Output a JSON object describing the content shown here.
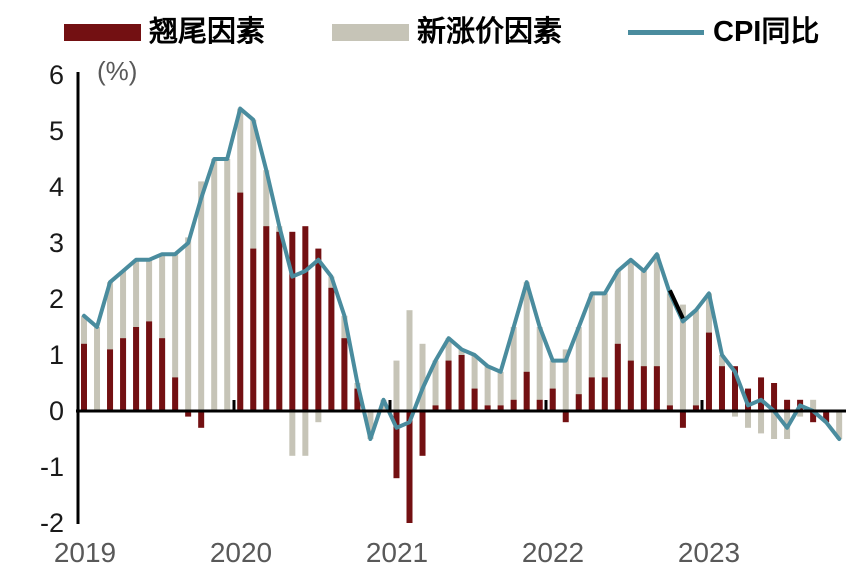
{
  "colors": {
    "carryover": "#731012",
    "new_price": "#C6C4B7",
    "cpi_line": "#4A8C9E",
    "black_segment": "#000000",
    "axis": "#000000",
    "y_label": "#1A1A1A",
    "x_label": "#595959",
    "unit_label": "#595959"
  },
  "legend": [
    {
      "label": "翘尾因素",
      "type": "bar",
      "color": "#731012"
    },
    {
      "label": "新涨价因素",
      "type": "bar",
      "color": "#C6C4B7"
    },
    {
      "label": "CPI同比",
      "type": "line",
      "color": "#4A8C9E"
    }
  ],
  "y_axis": {
    "unit": "(%)",
    "ticks": [
      6,
      5,
      4,
      3,
      2,
      1,
      0,
      -1,
      -2
    ],
    "min": -2,
    "max": 6
  },
  "x_axis": {
    "years": [
      "2019",
      "2020",
      "2021",
      "2022",
      "2023"
    ]
  },
  "chart_data": {
    "type": "bar+line",
    "title": "",
    "ylabel": "(%)",
    "ylim": [
      -2,
      6
    ],
    "grid": false,
    "legend_position": "top",
    "x": [
      "2019-01",
      "2019-02",
      "2019-03",
      "2019-04",
      "2019-05",
      "2019-06",
      "2019-07",
      "2019-08",
      "2019-09",
      "2019-10",
      "2019-11",
      "2019-12",
      "2020-01",
      "2020-02",
      "2020-03",
      "2020-04",
      "2020-05",
      "2020-06",
      "2020-07",
      "2020-08",
      "2020-09",
      "2020-10",
      "2020-11",
      "2020-12",
      "2021-01",
      "2021-02",
      "2021-03",
      "2021-04",
      "2021-05",
      "2021-06",
      "2021-07",
      "2021-08",
      "2021-09",
      "2021-10",
      "2021-11",
      "2021-12",
      "2022-01",
      "2022-02",
      "2022-03",
      "2022-04",
      "2022-05",
      "2022-06",
      "2022-07",
      "2022-08",
      "2022-09",
      "2022-10",
      "2022-11",
      "2022-12",
      "2023-01",
      "2023-02",
      "2023-03",
      "2023-04",
      "2023-05",
      "2023-06",
      "2023-07",
      "2023-08",
      "2023-09",
      "2023-10",
      "2023-11"
    ],
    "series": [
      {
        "name": "翘尾因素",
        "type": "bar",
        "stacked": true,
        "color": "#731012",
        "values": [
          1.2,
          0.0,
          1.1,
          1.3,
          1.5,
          1.6,
          1.3,
          0.6,
          -0.1,
          -0.3,
          0.0,
          0.0,
          3.9,
          2.9,
          3.3,
          3.2,
          3.2,
          3.3,
          2.9,
          2.2,
          1.3,
          0.4,
          0.0,
          0.0,
          -1.2,
          -2.0,
          -0.8,
          0.1,
          0.9,
          1.0,
          0.4,
          0.1,
          0.1,
          0.2,
          0.7,
          0.2,
          0.4,
          -0.2,
          0.3,
          0.6,
          0.6,
          1.2,
          0.9,
          0.8,
          0.8,
          0.1,
          -0.3,
          0.1,
          1.4,
          0.8,
          0.8,
          0.4,
          0.6,
          0.5,
          0.2,
          0.2,
          -0.2,
          -0.2,
          0.0
        ]
      },
      {
        "name": "新涨价因素",
        "type": "bar",
        "stacked": true,
        "color": "#C6C4B7",
        "values": [
          0.5,
          1.5,
          1.2,
          1.2,
          1.2,
          1.1,
          1.5,
          2.2,
          3.1,
          4.1,
          4.5,
          4.5,
          1.5,
          2.3,
          1.0,
          0.1,
          -0.8,
          -0.8,
          -0.2,
          0.2,
          0.4,
          0.1,
          -0.5,
          0.2,
          0.9,
          1.8,
          1.2,
          0.8,
          0.4,
          0.1,
          0.6,
          0.7,
          0.6,
          1.3,
          1.6,
          1.3,
          0.5,
          1.1,
          1.2,
          1.5,
          1.5,
          1.3,
          1.8,
          1.7,
          2.0,
          2.0,
          1.9,
          1.7,
          0.7,
          0.2,
          -0.1,
          -0.3,
          -0.4,
          -0.5,
          -0.5,
          -0.1,
          0.2,
          0.0,
          -0.5
        ]
      },
      {
        "name": "CPI同比",
        "type": "line",
        "color": "#4A8C9E",
        "values": [
          1.7,
          1.5,
          2.3,
          2.5,
          2.7,
          2.7,
          2.8,
          2.8,
          3.0,
          3.8,
          4.5,
          4.5,
          5.4,
          5.2,
          4.3,
          3.3,
          2.4,
          2.5,
          2.7,
          2.4,
          1.7,
          0.5,
          -0.5,
          0.2,
          -0.3,
          -0.2,
          0.4,
          0.9,
          1.3,
          1.1,
          1.0,
          0.8,
          0.7,
          1.5,
          2.3,
          1.5,
          0.9,
          0.9,
          1.5,
          2.1,
          2.1,
          2.5,
          2.7,
          2.5,
          2.8,
          2.1,
          1.6,
          1.8,
          2.1,
          1.0,
          0.7,
          0.1,
          0.2,
          0.0,
          -0.3,
          0.1,
          0.0,
          -0.2,
          -0.5
        ]
      }
    ],
    "annotations": [
      {
        "type": "black-line-segment",
        "from": "2022-10",
        "to": "2022-11"
      }
    ]
  }
}
